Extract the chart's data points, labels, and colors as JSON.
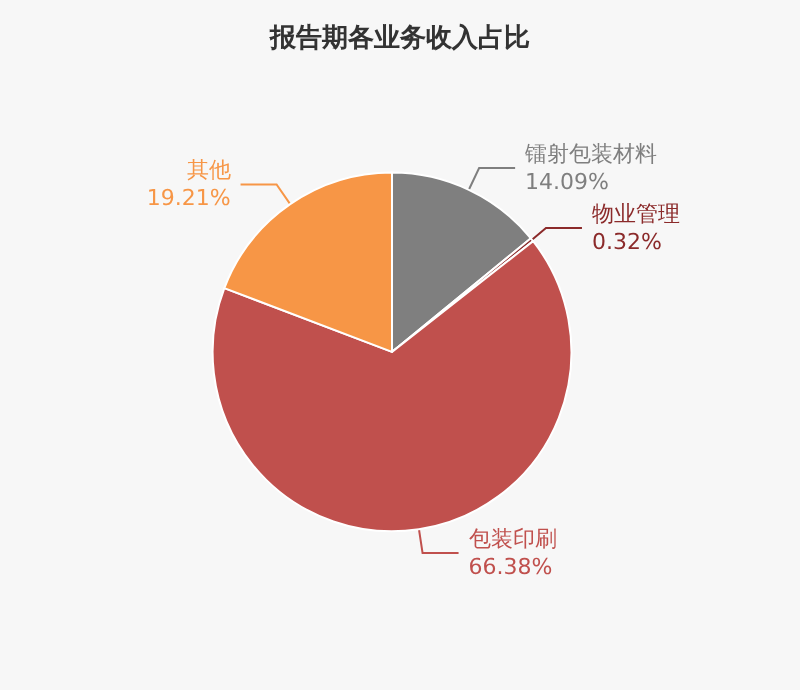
{
  "chart_data": {
    "type": "pie",
    "title": "报告期各业务收入占比",
    "categories": [
      "镭射包装材料",
      "物业管理",
      "包装印刷",
      "其他"
    ],
    "values": [
      14.09,
      0.32,
      66.38,
      19.21
    ],
    "value_labels": [
      "14.09%",
      "0.32%",
      "66.38%",
      "19.21%"
    ],
    "colors": [
      "#7f7f7f",
      "#8b2a2a",
      "#c0504d",
      "#f79646"
    ],
    "legend": false
  }
}
